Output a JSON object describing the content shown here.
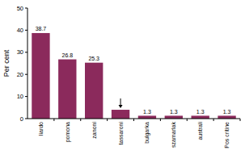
{
  "chart_data": {
    "type": "bar",
    "y_label": "Per cent",
    "categories": [
      "liardo",
      "pomona",
      "zanoni",
      "tassaroni",
      "bulgarka",
      "szamarlak",
      "australi",
      "Pos critine"
    ],
    "values": [
      38.7,
      26.8,
      25.3,
      4,
      1.3,
      1.3,
      1.3,
      1.3
    ],
    "value_labels": [
      "38.7",
      "26.8",
      "25.3",
      null,
      "1.3",
      "1.3",
      "1.3",
      "1.3"
    ],
    "color": "#8b2a5c",
    "ylim": [
      0,
      50
    ],
    "yticks": [
      0,
      10,
      20,
      30,
      40,
      50
    ],
    "grid": false,
    "data_labels": true
  }
}
